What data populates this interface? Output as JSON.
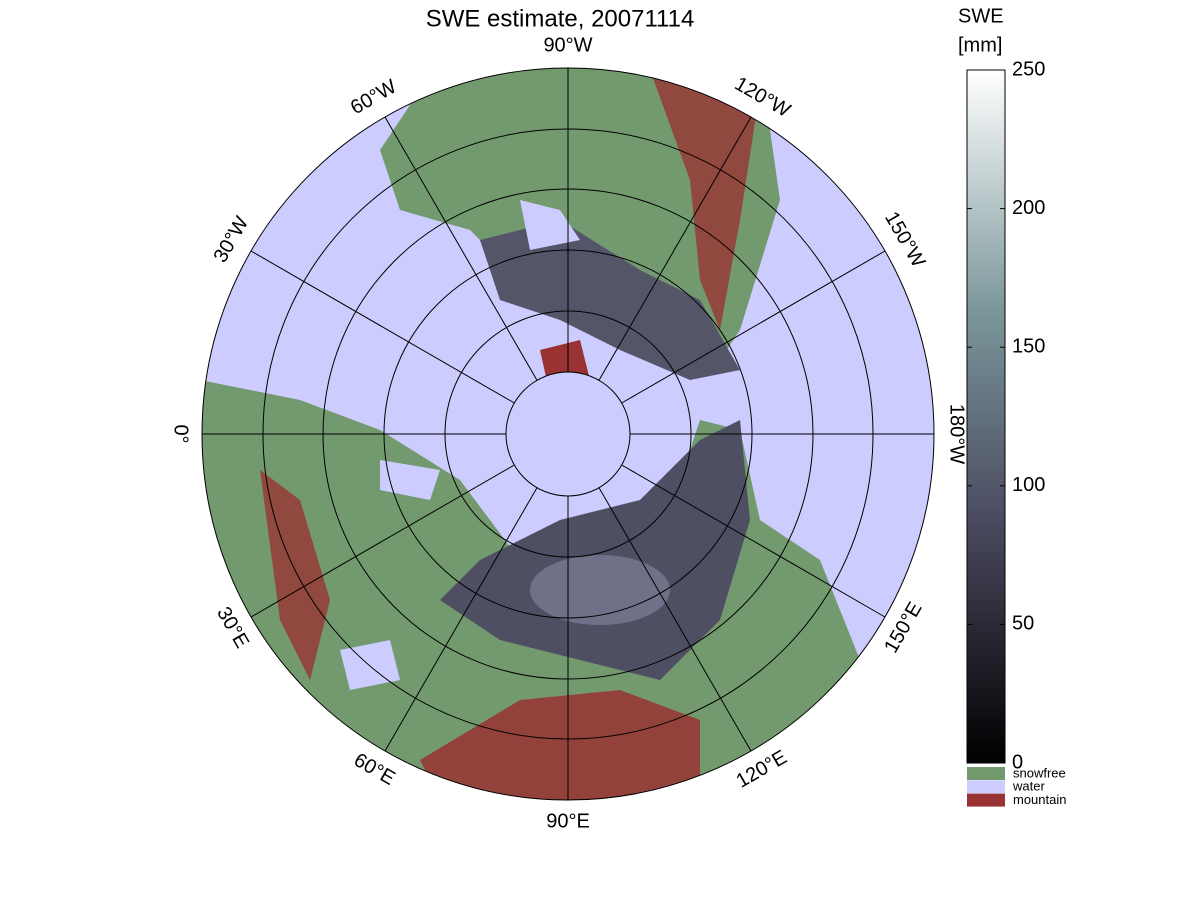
{
  "title": "SWE estimate, 20071114",
  "meridian_labels": [
    "90°W",
    "120°W",
    "150°W",
    "180°W",
    "150°E",
    "120°E",
    "90°E",
    "60°E",
    "30°E",
    "0°",
    "30°W",
    "60°W"
  ],
  "colorbar": {
    "label_lines": [
      "SWE",
      "[mm]"
    ],
    "lim": [
      0,
      250
    ],
    "ticks": [
      0,
      50,
      100,
      150,
      200,
      250
    ]
  },
  "legend": [
    {
      "name": "snowfree",
      "color": "#739a6f"
    },
    {
      "name": "water",
      "color": "#ccccff"
    },
    {
      "name": "mountain",
      "color": "#993333"
    }
  ]
}
